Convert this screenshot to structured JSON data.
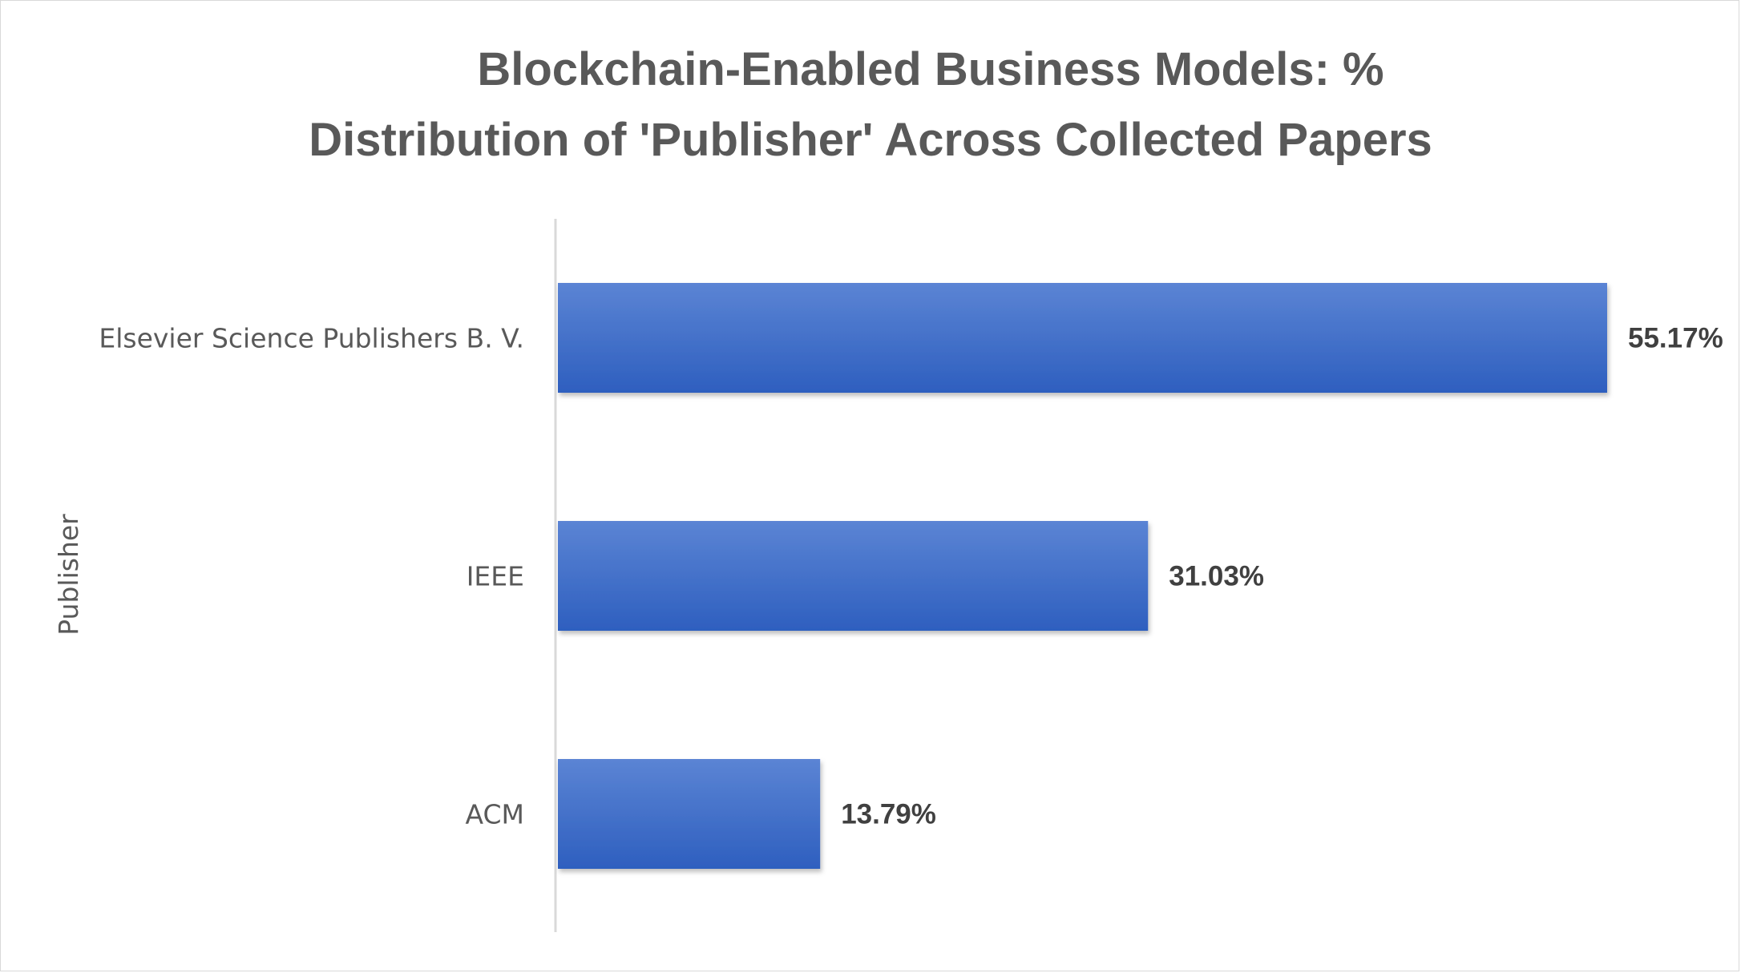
{
  "chart_data": {
    "type": "bar",
    "orientation": "horizontal",
    "title_lines": [
      "Blockchain-Enabled Business Models: %",
      "Distribution of 'Publisher' Across Collected Papers"
    ],
    "ylabel": "Publisher",
    "xlabel": "",
    "categories": [
      "Elsevier Science Publishers B. V.",
      "IEEE",
      "ACM"
    ],
    "values": [
      55.17,
      31.03,
      13.79
    ],
    "data_labels": [
      "55.17%",
      "31.03%",
      "13.79%"
    ],
    "xlim": [
      0,
      55.17
    ],
    "grid": false,
    "legend": "none",
    "colors": {
      "bar_top": "#5b84d4",
      "bar_bottom": "#2e5fbf",
      "axis": "#d9d9d9"
    }
  }
}
